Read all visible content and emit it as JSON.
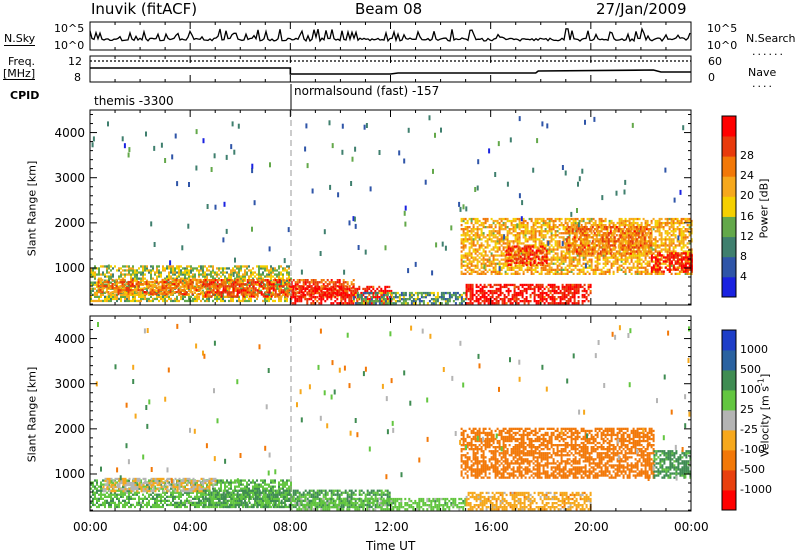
{
  "header": {
    "station": "Inuvik (fitACF)",
    "beam": "Beam 08",
    "date": "27/Jan/2009"
  },
  "strip_labels": {
    "nsky": "N.Sky",
    "nsearch": "N.Search",
    "freq": "Freq.",
    "freq_unit": "[MHz]",
    "nave": "Nave",
    "cpid": "CPID"
  },
  "strip_ticks": {
    "nsky_top": "10^5",
    "nsky_bottom": "10^0",
    "nsearch_top": "10^5",
    "nsearch_bottom": "10^0",
    "freq_top": "12",
    "freq_bottom": "8",
    "nave_top": "60",
    "nave_bottom": "0"
  },
  "cpid_segments": [
    {
      "label": "themis -3300",
      "start_hour": 0,
      "end_hour": 8
    },
    {
      "label": "normalsound (fast) -157",
      "start_hour": 8,
      "end_hour": 24
    }
  ],
  "x_axis": {
    "label": "Time UT",
    "ticks": [
      "00:00",
      "04:00",
      "08:00",
      "12:00",
      "16:00",
      "20:00",
      "00:00"
    ],
    "tick_hours": [
      0,
      4,
      8,
      12,
      16,
      20,
      24
    ]
  },
  "colors": {
    "power_scale": [
      "#1a22e0",
      "#2f55a8",
      "#3f7f6e",
      "#63a84a",
      "#f5d000",
      "#f6a81c",
      "#f27808",
      "#e83a0c",
      "#ff0000"
    ],
    "velocity_scale": [
      "#ff0000",
      "#e8400e",
      "#f27808",
      "#f6a81c",
      "#b4b4b4",
      "#63c640",
      "#3f8c52",
      "#2a62a0",
      "#1e3ec8"
    ]
  },
  "chart_data": [
    {
      "type": "heatmap",
      "name": "power",
      "title": "",
      "xlabel": "Time UT",
      "ylabel": "Slant Range [km]",
      "xlim": [
        0,
        24
      ],
      "ylim": [
        180,
        4500
      ],
      "yticks": [
        "1000",
        "2000",
        "3000",
        "4000"
      ],
      "ytick_values": [
        1000,
        2000,
        3000,
        4000
      ],
      "colorbar": {
        "label": "Power [dB]",
        "ticks": [
          "4",
          "8",
          "12",
          "16",
          "20",
          "24",
          "28"
        ],
        "tick_values": [
          4,
          8,
          12,
          16,
          20,
          24,
          28
        ],
        "range": [
          0,
          30
        ]
      },
      "echo_regions": [
        {
          "start_hour": 0.0,
          "end_hour": 8.0,
          "range_min_km": 250,
          "range_max_km": 1050,
          "power_db": 14
        },
        {
          "start_hour": 0.3,
          "end_hour": 4.5,
          "range_min_km": 400,
          "range_max_km": 750,
          "power_db": 22
        },
        {
          "start_hour": 4.5,
          "end_hour": 10.5,
          "range_min_km": 350,
          "range_max_km": 750,
          "power_db": 24
        },
        {
          "start_hour": 8.0,
          "end_hour": 12.0,
          "range_min_km": 200,
          "range_max_km": 600,
          "power_db": 28
        },
        {
          "start_hour": 10.5,
          "end_hour": 15.0,
          "range_min_km": 200,
          "range_max_km": 450,
          "power_db": 10
        },
        {
          "start_hour": 15.0,
          "end_hour": 20.0,
          "range_min_km": 200,
          "range_max_km": 650,
          "power_db": 28
        },
        {
          "start_hour": 14.8,
          "end_hour": 24.0,
          "range_min_km": 850,
          "range_max_km": 2100,
          "power_db": 18
        },
        {
          "start_hour": 16.6,
          "end_hour": 18.2,
          "range_min_km": 1050,
          "range_max_km": 1500,
          "power_db": 26
        },
        {
          "start_hour": 22.4,
          "end_hour": 24.0,
          "range_min_km": 900,
          "range_max_km": 1350,
          "power_db": 28
        },
        {
          "start_hour": 19.0,
          "end_hour": 22.4,
          "range_min_km": 1300,
          "range_max_km": 1900,
          "power_db": 22
        }
      ]
    },
    {
      "type": "heatmap",
      "name": "velocity",
      "title": "",
      "xlabel": "Time UT",
      "ylabel": "Slant Range [km]",
      "xlim": [
        0,
        24
      ],
      "ylim": [
        180,
        4500
      ],
      "yticks": [
        "1000",
        "2000",
        "3000",
        "4000"
      ],
      "ytick_values": [
        1000,
        2000,
        3000,
        4000
      ],
      "colorbar": {
        "label": "Velocity [m s",
        "label_sup": "-1",
        "label_end": "]",
        "ticks": [
          "1000",
          "500",
          "100",
          "25",
          "-25",
          "-100",
          "-500",
          "-1000"
        ],
        "tick_values": [
          1000,
          500,
          100,
          25,
          -25,
          -100,
          -500,
          -1000
        ]
      },
      "echo_regions": [
        {
          "start_hour": 0.0,
          "end_hour": 8.0,
          "range_min_km": 250,
          "range_max_km": 850,
          "velocity_ms": 80
        },
        {
          "start_hour": 0.5,
          "end_hour": 5.0,
          "range_min_km": 600,
          "range_max_km": 900,
          "velocity_ms": -20
        },
        {
          "start_hour": 4.5,
          "end_hour": 12.0,
          "range_min_km": 250,
          "range_max_km": 650,
          "velocity_ms": 120
        },
        {
          "start_hour": 8.0,
          "end_hour": 15.0,
          "range_min_km": 200,
          "range_max_km": 450,
          "velocity_ms": 60
        },
        {
          "start_hour": 15.0,
          "end_hour": 20.0,
          "range_min_km": 200,
          "range_max_km": 600,
          "velocity_ms": -60
        },
        {
          "start_hour": 14.8,
          "end_hour": 22.5,
          "range_min_km": 900,
          "range_max_km": 2000,
          "velocity_ms": -300
        },
        {
          "start_hour": 22.5,
          "end_hour": 24.0,
          "range_min_km": 900,
          "range_max_km": 1500,
          "velocity_ms": 150
        }
      ]
    }
  ]
}
